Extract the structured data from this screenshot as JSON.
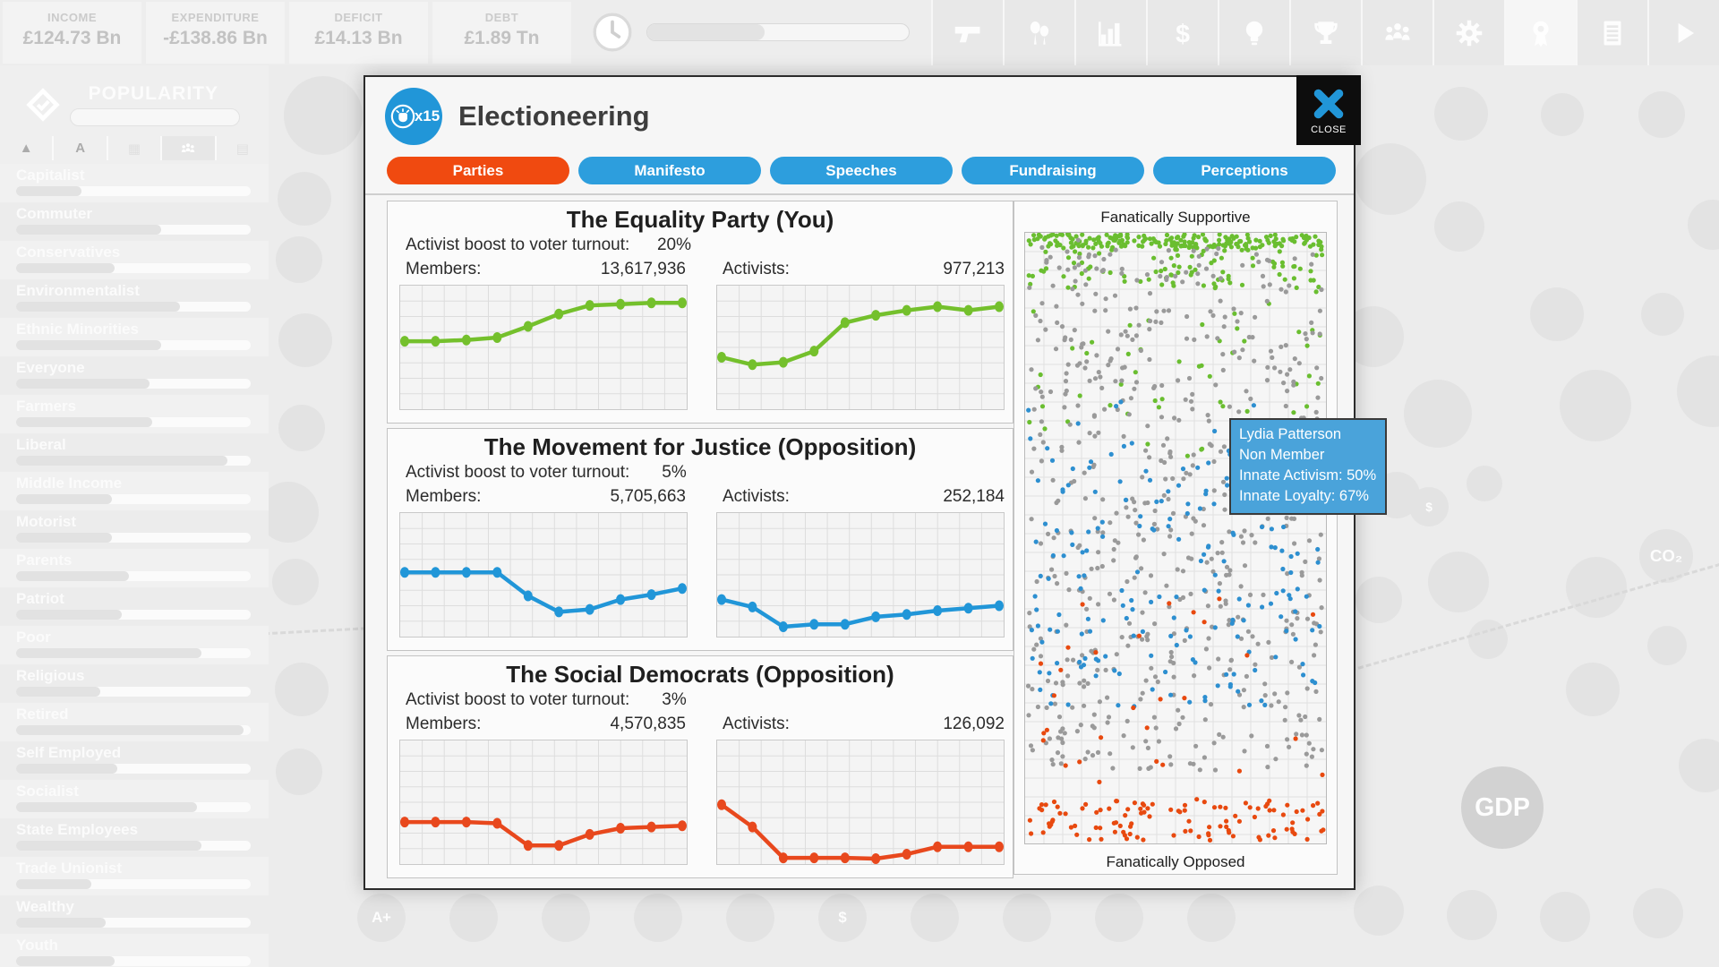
{
  "top_bar": {
    "stats": [
      {
        "id": "income",
        "label": "INCOME",
        "value": "£124.73 Bn"
      },
      {
        "id": "expenditure",
        "label": "EXPENDITURE",
        "value": "-£138.86 Bn"
      },
      {
        "id": "deficit",
        "label": "DEFICIT",
        "value": "£14.13 Bn"
      },
      {
        "id": "debt",
        "label": "DEBT",
        "value": "£1.89 Tn"
      }
    ],
    "turn_bar_fill_pct": 45,
    "toolbar_icons": [
      "pistol-icon",
      "balloons-icon",
      "bar-chart-icon",
      "dollar-icon",
      "bulb-icon",
      "trophy-icon",
      "people-icon",
      "gear-icon",
      "rosette-icon",
      "report-icon",
      "play-icon"
    ],
    "toolbar_active_index": 8
  },
  "sidebar": {
    "title": "POPULARITY",
    "filter_icons": [
      "sort-icon",
      "alpha-icon",
      "grid-icon",
      "people-icon",
      "chart-icon"
    ],
    "groups": [
      {
        "name": "Capitalist",
        "value": 28
      },
      {
        "name": "Commuter",
        "value": 62
      },
      {
        "name": "Conservatives",
        "value": 42
      },
      {
        "name": "Environmentalist",
        "value": 70
      },
      {
        "name": "Ethnic Minorities",
        "value": 62
      },
      {
        "name": "Everyone",
        "value": 57
      },
      {
        "name": "Farmers",
        "value": 58
      },
      {
        "name": "Liberal",
        "value": 90
      },
      {
        "name": "Middle Income",
        "value": 41
      },
      {
        "name": "Motorist",
        "value": 41
      },
      {
        "name": "Parents",
        "value": 48
      },
      {
        "name": "Patriot",
        "value": 45
      },
      {
        "name": "Poor",
        "value": 79
      },
      {
        "name": "Religious",
        "value": 36
      },
      {
        "name": "Retired",
        "value": 97
      },
      {
        "name": "Self Employed",
        "value": 43
      },
      {
        "name": "Socialist",
        "value": 77
      },
      {
        "name": "State Employees",
        "value": 79
      },
      {
        "name": "Trade Unionist",
        "value": 32
      },
      {
        "name": "Wealthy",
        "value": 38
      },
      {
        "name": "Youth",
        "value": 42
      }
    ]
  },
  "dialog": {
    "title": "Electioneering",
    "badge": "x15",
    "close_label": "CLOSE",
    "tabs": [
      {
        "label": "Parties",
        "active": true
      },
      {
        "label": "Manifesto",
        "active": false
      },
      {
        "label": "Speeches",
        "active": false
      },
      {
        "label": "Fundraising",
        "active": false
      },
      {
        "label": "Perceptions",
        "active": false
      }
    ],
    "parties": [
      {
        "name": "The Equality Party (You)",
        "boost_label": "Activist boost to voter turnout:",
        "boost": "20%",
        "members_label": "Members:",
        "members": "13,617,936",
        "activists_label": "Activists:",
        "activists": "977,213",
        "color": "#74c02c"
      },
      {
        "name": "The Movement for Justice (Opposition)",
        "boost_label": "Activist boost to voter turnout:",
        "boost": "5%",
        "members_label": "Members:",
        "members": "5,705,663",
        "activists_label": "Activists:",
        "activists": "252,184",
        "color": "#2196d8"
      },
      {
        "name": "The Social Democrats (Opposition)",
        "boost_label": "Activist boost to voter turnout:",
        "boost": "3%",
        "members_label": "Members:",
        "members": "4,570,835",
        "activists_label": "Activists:",
        "activists": "126,092",
        "color": "#e8481d"
      }
    ],
    "scatter": {
      "top_label": "Fanatically Supportive",
      "bottom_label": "Fanatically Opposed"
    },
    "tooltip": {
      "lines": [
        "Lydia Patterson",
        "Non Member",
        "Innate Activism: 50%",
        "Innate Loyalty: 67%"
      ]
    }
  },
  "background": {
    "labels": {
      "gdp": "GDP",
      "co2": "CO₂",
      "a_plus": "A+",
      "dollar": "$"
    }
  },
  "chart_data": [
    {
      "id": "party1_members",
      "type": "line",
      "title": "The Equality Party — Members over time",
      "color": "#74c02c",
      "ylim": [
        0,
        1
      ],
      "grid": [
        13,
        8
      ],
      "values": [
        0.55,
        0.55,
        0.56,
        0.58,
        0.67,
        0.77,
        0.84,
        0.85,
        0.86,
        0.86
      ]
    },
    {
      "id": "party1_activists",
      "type": "line",
      "title": "The Equality Party — Activists over time",
      "color": "#74c02c",
      "ylim": [
        0,
        1
      ],
      "grid": [
        13,
        8
      ],
      "values": [
        0.42,
        0.36,
        0.38,
        0.47,
        0.7,
        0.76,
        0.8,
        0.83,
        0.8,
        0.83
      ]
    },
    {
      "id": "party2_members",
      "type": "line",
      "title": "The Movement for Justice — Members over time",
      "color": "#2196d8",
      "ylim": [
        0,
        1
      ],
      "grid": [
        13,
        8
      ],
      "values": [
        0.52,
        0.52,
        0.52,
        0.52,
        0.33,
        0.2,
        0.22,
        0.3,
        0.34,
        0.39
      ]
    },
    {
      "id": "party2_activists",
      "type": "line",
      "title": "The Movement for Justice — Activists over time",
      "color": "#2196d8",
      "ylim": [
        0,
        1
      ],
      "grid": [
        13,
        8
      ],
      "values": [
        0.3,
        0.24,
        0.08,
        0.1,
        0.1,
        0.16,
        0.18,
        0.21,
        0.23,
        0.25
      ]
    },
    {
      "id": "party3_members",
      "type": "line",
      "title": "The Social Democrats — Members over time",
      "color": "#e8481d",
      "ylim": [
        0,
        1
      ],
      "grid": [
        13,
        8
      ],
      "values": [
        0.34,
        0.34,
        0.34,
        0.33,
        0.15,
        0.15,
        0.24,
        0.29,
        0.3,
        0.31
      ]
    },
    {
      "id": "party3_activists",
      "type": "line",
      "title": "The Social Democrats — Activists over time",
      "color": "#e8481d",
      "ylim": [
        0,
        1
      ],
      "grid": [
        13,
        8
      ],
      "values": [
        0.48,
        0.3,
        0.05,
        0.05,
        0.05,
        0.04,
        0.08,
        0.14,
        0.14,
        0.14
      ]
    },
    {
      "id": "voter_scatter",
      "type": "scatter",
      "title": "Voter fanaticism spread (top = Fanatically Supportive, bottom = Fanatically Opposed)",
      "bands": [
        {
          "color": "#6abe30",
          "count": 200,
          "y_range": [
            0.002,
            0.025
          ]
        },
        {
          "color": "#6abe30",
          "count": 90,
          "y_range": [
            0.025,
            0.09
          ]
        },
        {
          "color": "#6abe30",
          "count": 55,
          "y_range": [
            0.09,
            0.4
          ]
        },
        {
          "color": "#9a9a9a",
          "count": 620,
          "y_range": [
            0.01,
            0.88
          ]
        },
        {
          "color": "#2d8fd0",
          "count": 15,
          "y_range": [
            0.27,
            0.36
          ]
        },
        {
          "color": "#2d8fd0",
          "count": 185,
          "y_range": [
            0.36,
            0.78
          ]
        },
        {
          "color": "#e8490f",
          "count": 30,
          "y_range": [
            0.58,
            0.93
          ]
        },
        {
          "color": "#e8490f",
          "count": 110,
          "y_range": [
            0.93,
            0.995
          ]
        }
      ]
    }
  ]
}
